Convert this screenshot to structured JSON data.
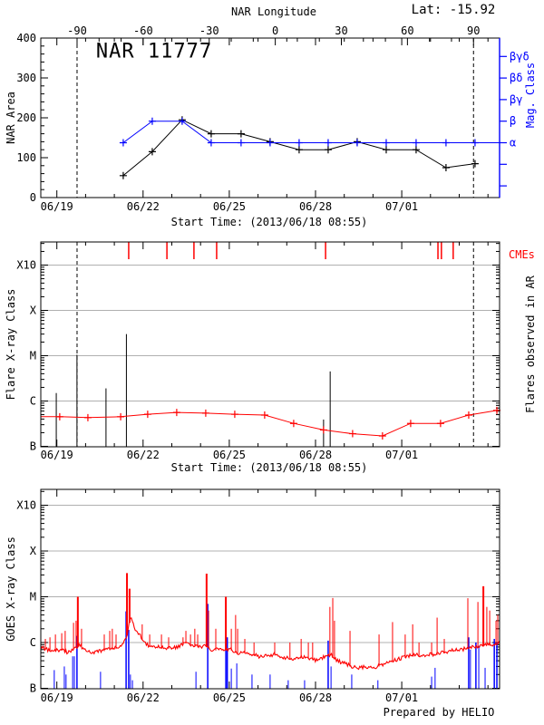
{
  "header": {
    "lat_label": "Lat: -15.92",
    "prepared_by": "Prepared by HELIO"
  },
  "colors": {
    "red": "#ff0000",
    "blue": "#0000ff",
    "grid": "#b0b0b0",
    "axis": "#000000"
  },
  "chart_data": [
    {
      "type": "line",
      "title": "NAR 11777",
      "top_axis": {
        "label": "NAR Longitude",
        "ticks": [
          {
            "lon": -90,
            "label": "-90"
          },
          {
            "lon": -60,
            "label": "-60"
          },
          {
            "lon": -30,
            "label": "-30"
          },
          {
            "lon": 0,
            "label": "0"
          },
          {
            "lon": 30,
            "label": "30"
          },
          {
            "lon": 60,
            "label": "60"
          },
          {
            "lon": 90,
            "label": "90"
          }
        ],
        "minor_step_deg": 10,
        "east_limb_day": 0.703,
        "west_limb_day": 14.497
      },
      "left_axis": {
        "label": "NAR Area",
        "range": [
          0,
          400
        ],
        "major_ticks": [
          {
            "value": 0,
            "label": "0"
          },
          {
            "value": 100,
            "label": "100"
          },
          {
            "value": 200,
            "label": "200"
          },
          {
            "value": 300,
            "label": "300"
          },
          {
            "value": 400,
            "label": "400"
          }
        ],
        "minor_step": 20
      },
      "right_axis": {
        "label": "Mag. Class",
        "tick_labels": [
          "βγδ",
          "βδ",
          "βγ",
          "β",
          "α",
          "",
          ""
        ],
        "color": "#0000ff"
      },
      "x_axis": {
        "title": "Start Time: (2013/06/18 08:55)",
        "major_ticks": [
          {
            "day": 0,
            "label": "06/19"
          },
          {
            "day": 3,
            "label": "06/22"
          },
          {
            "day": 6,
            "label": "06/25"
          },
          {
            "day": 9,
            "label": "06/28"
          },
          {
            "day": 12,
            "label": "07/01"
          }
        ],
        "minor_days": [
          1,
          2,
          4,
          5,
          7,
          8,
          10,
          11,
          13,
          14,
          15
        ]
      },
      "x_days": [
        2.31,
        3.32,
        4.36,
        5.37,
        6.41,
        7.42,
        8.43,
        9.44,
        10.45,
        11.46,
        12.5,
        13.54,
        14.55
      ],
      "series": [
        {
          "name": "nar-area",
          "color": "#000000",
          "marker": "plus",
          "values": [
            55,
            115,
            195,
            160,
            160,
            140,
            120,
            120,
            140,
            120,
            120,
            75,
            85
          ]
        },
        {
          "name": "mag-class",
          "color": "#0000ff",
          "marker": "plus",
          "classes": [
            "α",
            "β",
            "β",
            "α",
            "α",
            "α",
            "α",
            "α",
            "α",
            "α",
            "α",
            "α",
            "α"
          ]
        }
      ],
      "dashed_limb_lines_days": [
        0.703,
        14.497
      ]
    },
    {
      "type": "flare-timeline",
      "left_axis": {
        "label": "Flare X-ray Class",
        "decade_ticks": [
          {
            "flux": 1,
            "label": "B"
          },
          {
            "flux": 10,
            "label": "C"
          },
          {
            "flux": 100,
            "label": "M"
          },
          {
            "flux": 1000,
            "label": "X"
          },
          {
            "flux": 10000,
            "label": "X10"
          }
        ]
      },
      "right_axis_label": "Flares observed in AR",
      "cmes": {
        "label": "CMEs",
        "color": "#ff0000",
        "days": [
          2.5,
          3.83,
          4.77,
          5.56,
          9.35,
          13.26,
          13.38,
          13.79
        ]
      },
      "flares": [
        {
          "day": -0.02,
          "peak_flux": 15,
          "class": "C1.5"
        },
        {
          "day": 0.7,
          "peak_flux": 105,
          "class": "M1.0"
        },
        {
          "day": 1.71,
          "peak_flux": 19,
          "class": "C1.9"
        },
        {
          "day": 2.42,
          "peak_flux": 300,
          "class": "M3.0"
        },
        {
          "day": 9.28,
          "peak_flux": 3.9,
          "class": "B3.9"
        },
        {
          "day": 9.51,
          "peak_flux": 45,
          "class": "C4.5"
        }
      ],
      "flare_index_line": {
        "color": "#ff0000",
        "days": [
          -0.56,
          0.1,
          1.08,
          2.22,
          3.16,
          4.17,
          5.18,
          6.19,
          7.23,
          8.24,
          9.28,
          10.29,
          11.33,
          12.31,
          13.35,
          14.33,
          15.31
        ],
        "flux": [
          4.5,
          4.5,
          4.3,
          4.5,
          5.1,
          5.6,
          5.4,
          5.1,
          4.9,
          3.2,
          2.3,
          1.9,
          1.7,
          3.2,
          3.2,
          4.9,
          6.2
        ],
        "first_marker_index": 1
      },
      "x_axis": {
        "title": "Start Time: (2013/06/18 08:55)",
        "major_ticks": [
          {
            "day": 0,
            "label": "06/19"
          },
          {
            "day": 3,
            "label": "06/22"
          },
          {
            "day": 6,
            "label": "06/25"
          },
          {
            "day": 9,
            "label": "06/28"
          },
          {
            "day": 12,
            "label": "07/01"
          }
        ],
        "minor_days": [
          1,
          2,
          4,
          5,
          7,
          8,
          10,
          11,
          13,
          14,
          15
        ]
      },
      "dashed_limb_lines_days": [
        0.703,
        14.497
      ],
      "flux_unit": "1e-7 W m^-2 (B1 = 1)"
    },
    {
      "type": "time-series",
      "left_axis": {
        "label": "GOES X-ray Class",
        "decade_ticks": [
          {
            "flux": 1,
            "label": "B"
          },
          {
            "flux": 10,
            "label": "C"
          },
          {
            "flux": 100,
            "label": "M"
          },
          {
            "flux": 1000,
            "label": "X"
          },
          {
            "flux": 10000,
            "label": "X10"
          }
        ]
      },
      "baseline": [
        [
          -0.56,
          8
        ],
        [
          -0.34,
          7
        ],
        [
          -0.09,
          6.5
        ],
        [
          0.17,
          7
        ],
        [
          0.39,
          6
        ],
        [
          0.61,
          7.5
        ],
        [
          0.8,
          9
        ],
        [
          0.96,
          7
        ],
        [
          1.21,
          6
        ],
        [
          1.49,
          6.5
        ],
        [
          1.78,
          7
        ],
        [
          2.03,
          7.5
        ],
        [
          2.25,
          8
        ],
        [
          2.41,
          12
        ],
        [
          2.56,
          35
        ],
        [
          2.75,
          18
        ],
        [
          2.94,
          13
        ],
        [
          3.13,
          9
        ],
        [
          3.38,
          8
        ],
        [
          3.67,
          8
        ],
        [
          3.95,
          7.5
        ],
        [
          4.24,
          8
        ],
        [
          4.49,
          10
        ],
        [
          4.71,
          9
        ],
        [
          4.96,
          8
        ],
        [
          5.18,
          8.5
        ],
        [
          5.4,
          7
        ],
        [
          5.62,
          7
        ],
        [
          5.84,
          7
        ],
        [
          6.07,
          7
        ],
        [
          6.29,
          6
        ],
        [
          6.54,
          6
        ],
        [
          6.79,
          5.5
        ],
        [
          7.04,
          5
        ],
        [
          7.3,
          5
        ],
        [
          7.55,
          5.5
        ],
        [
          7.8,
          5
        ],
        [
          8.05,
          4.5
        ],
        [
          8.31,
          4.5
        ],
        [
          8.56,
          5
        ],
        [
          8.81,
          4.5
        ],
        [
          9.06,
          4
        ],
        [
          9.32,
          5
        ],
        [
          9.54,
          5.5
        ],
        [
          9.76,
          4
        ],
        [
          10.01,
          3.5
        ],
        [
          10.26,
          3
        ],
        [
          10.51,
          2.8
        ],
        [
          10.77,
          3
        ],
        [
          11.02,
          2.7
        ],
        [
          11.24,
          3.2
        ],
        [
          11.46,
          3.5
        ],
        [
          11.71,
          4
        ],
        [
          11.96,
          4.5
        ],
        [
          12.22,
          5
        ],
        [
          12.44,
          5.5
        ],
        [
          12.66,
          5
        ],
        [
          12.91,
          5.5
        ],
        [
          13.16,
          5.5
        ],
        [
          13.42,
          6
        ],
        [
          13.64,
          6.5
        ],
        [
          13.86,
          7
        ],
        [
          14.08,
          7
        ],
        [
          14.3,
          7.5
        ],
        [
          14.49,
          8
        ],
        [
          14.68,
          8
        ],
        [
          14.87,
          9
        ],
        [
          15.06,
          9
        ],
        [
          15.25,
          9
        ],
        [
          15.41,
          10
        ]
      ],
      "red_spikes": [
        [
          -0.4,
          12
        ],
        [
          -0.24,
          13
        ],
        [
          -0.05,
          15
        ],
        [
          0.17,
          16
        ],
        [
          0.29,
          18
        ],
        [
          0.58,
          27
        ],
        [
          0.67,
          30
        ],
        [
          0.73,
          100
        ],
        [
          0.86,
          20
        ],
        [
          1.65,
          15
        ],
        [
          1.84,
          18
        ],
        [
          1.93,
          20
        ],
        [
          2.06,
          15
        ],
        [
          2.44,
          330
        ],
        [
          2.53,
          150
        ],
        [
          2.97,
          25
        ],
        [
          3.23,
          15
        ],
        [
          3.64,
          15
        ],
        [
          3.89,
          13
        ],
        [
          4.39,
          13
        ],
        [
          4.49,
          18
        ],
        [
          4.65,
          15
        ],
        [
          4.8,
          20
        ],
        [
          4.9,
          15
        ],
        [
          5.21,
          320
        ],
        [
          5.28,
          50
        ],
        [
          5.53,
          20
        ],
        [
          5.88,
          100
        ],
        [
          6.07,
          20
        ],
        [
          6.22,
          40
        ],
        [
          6.29,
          20
        ],
        [
          6.54,
          12
        ],
        [
          6.86,
          10
        ],
        [
          7.58,
          10
        ],
        [
          8.11,
          10
        ],
        [
          8.5,
          12
        ],
        [
          8.75,
          10
        ],
        [
          8.9,
          10
        ],
        [
          9.5,
          60
        ],
        [
          9.6,
          94
        ],
        [
          9.66,
          30
        ],
        [
          10.2,
          18
        ],
        [
          11.21,
          15
        ],
        [
          11.68,
          28
        ],
        [
          12.12,
          15
        ],
        [
          12.38,
          25
        ],
        [
          12.6,
          10
        ],
        [
          13.04,
          10
        ],
        [
          13.23,
          35
        ],
        [
          13.48,
          12
        ],
        [
          14.3,
          93
        ],
        [
          14.65,
          77
        ],
        [
          14.84,
          170
        ],
        [
          14.96,
          60
        ],
        [
          15.06,
          50
        ],
        [
          15.28,
          30
        ],
        [
          15.34,
          40
        ]
      ],
      "blue_spikes": [
        [
          -0.09,
          2.5
        ],
        [
          0.26,
          3
        ],
        [
          0.32,
          2
        ],
        [
          0.55,
          5
        ],
        [
          0.61,
          5
        ],
        [
          0.7,
          14
        ],
        [
          1.52,
          2.3
        ],
        [
          2.41,
          48
        ],
        [
          2.5,
          19
        ],
        [
          2.56,
          2
        ],
        [
          2.63,
          1.5
        ],
        [
          4.84,
          2.3
        ],
        [
          5.25,
          70
        ],
        [
          5.88,
          14
        ],
        [
          5.93,
          13
        ],
        [
          6.07,
          2.7
        ],
        [
          6.26,
          3.5
        ],
        [
          6.79,
          2
        ],
        [
          7.42,
          2
        ],
        [
          8.05,
          1.5
        ],
        [
          8.62,
          1.5
        ],
        [
          9.44,
          11
        ],
        [
          9.54,
          3
        ],
        [
          10.26,
          2
        ],
        [
          11.17,
          1.5
        ],
        [
          13.04,
          1.8
        ],
        [
          13.16,
          2.8
        ],
        [
          14.33,
          13
        ],
        [
          14.39,
          7
        ],
        [
          14.58,
          10
        ],
        [
          14.68,
          8.5
        ],
        [
          14.9,
          2.8
        ],
        [
          15.22,
          12
        ],
        [
          15.31,
          10
        ]
      ],
      "x_axis": {
        "major_ticks": [
          {
            "day": 0,
            "label": "06/19"
          },
          {
            "day": 3,
            "label": "06/22"
          },
          {
            "day": 6,
            "label": "06/25"
          },
          {
            "day": 9,
            "label": "06/28"
          },
          {
            "day": 12,
            "label": "07/01"
          }
        ],
        "minor_days": [
          1,
          2,
          4,
          5,
          7,
          8,
          10,
          11,
          13,
          14,
          15
        ]
      },
      "flux_unit": "1e-7 W m^-2 (B1 = 1)"
    }
  ]
}
